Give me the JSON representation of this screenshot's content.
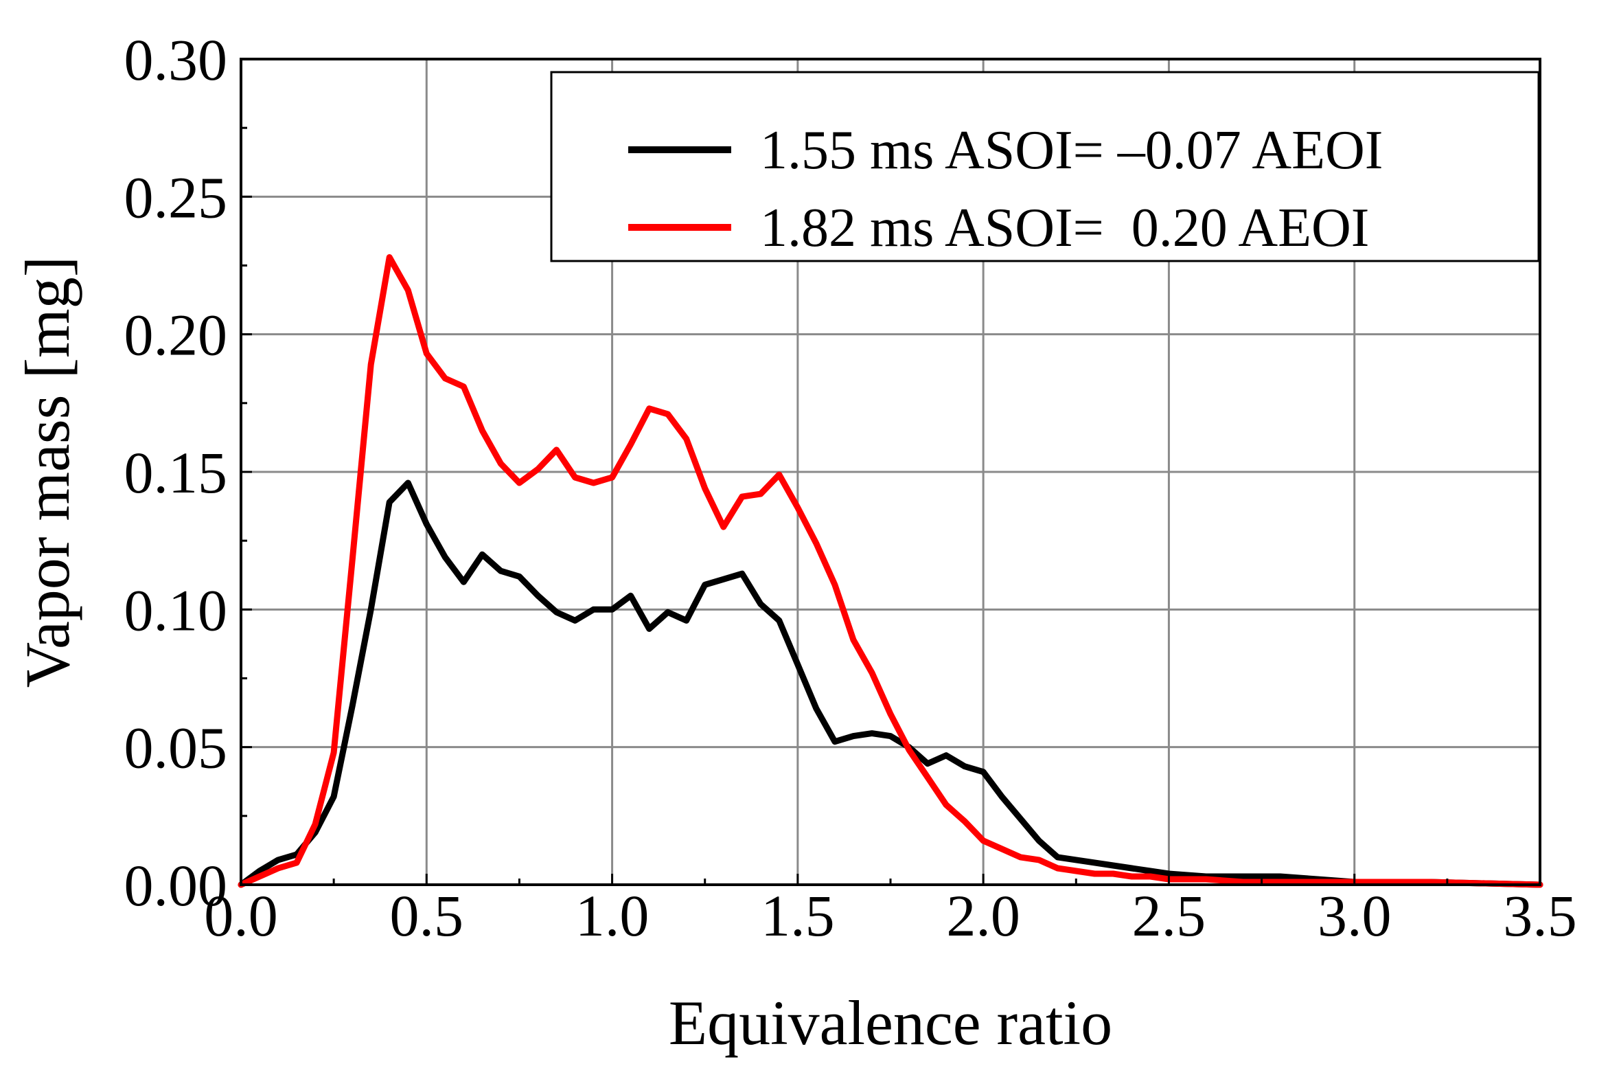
{
  "chart_data": {
    "type": "line",
    "title": "",
    "xlabel": "Equivalence ratio",
    "ylabel": "Vapor mass [mg]",
    "xlim": [
      0.0,
      3.5
    ],
    "ylim": [
      0.0,
      0.3
    ],
    "grid": true,
    "legend_position": "top-right",
    "x_ticks": [
      0.0,
      0.5,
      1.0,
      1.5,
      2.0,
      2.5,
      3.0,
      3.5
    ],
    "x_tick_labels": [
      "0.0",
      "0.5",
      "1.0",
      "1.5",
      "2.0",
      "2.5",
      "3.0",
      "3.5"
    ],
    "y_ticks": [
      0.0,
      0.05,
      0.1,
      0.15,
      0.2,
      0.25,
      0.3
    ],
    "y_tick_labels": [
      "0.00",
      "0.05",
      "0.10",
      "0.15",
      "0.20",
      "0.25",
      "0.30"
    ],
    "series": [
      {
        "name": "1.55 ms ASOI= –0.07 AEOI",
        "color": "#000000",
        "x": [
          0.0,
          0.05,
          0.1,
          0.15,
          0.2,
          0.25,
          0.3,
          0.35,
          0.4,
          0.45,
          0.5,
          0.55,
          0.6,
          0.65,
          0.7,
          0.75,
          0.8,
          0.85,
          0.9,
          0.95,
          1.0,
          1.05,
          1.1,
          1.15,
          1.2,
          1.25,
          1.3,
          1.35,
          1.4,
          1.45,
          1.5,
          1.55,
          1.6,
          1.65,
          1.7,
          1.75,
          1.8,
          1.85,
          1.9,
          1.95,
          2.0,
          2.05,
          2.1,
          2.15,
          2.2,
          2.25,
          2.3,
          2.35,
          2.4,
          2.45,
          2.5,
          2.6,
          2.7,
          2.8,
          2.9,
          3.0,
          3.2,
          3.5
        ],
        "values": [
          0.0,
          0.005,
          0.009,
          0.011,
          0.019,
          0.032,
          0.065,
          0.1,
          0.139,
          0.146,
          0.131,
          0.119,
          0.11,
          0.12,
          0.114,
          0.112,
          0.105,
          0.099,
          0.096,
          0.1,
          0.1,
          0.105,
          0.093,
          0.099,
          0.096,
          0.109,
          0.111,
          0.113,
          0.102,
          0.096,
          0.08,
          0.064,
          0.052,
          0.054,
          0.055,
          0.054,
          0.05,
          0.044,
          0.047,
          0.043,
          0.041,
          0.032,
          0.024,
          0.016,
          0.01,
          0.009,
          0.008,
          0.007,
          0.006,
          0.005,
          0.004,
          0.003,
          0.003,
          0.003,
          0.002,
          0.001,
          0.001,
          0.0
        ]
      },
      {
        "name": "1.82 ms ASOI=  0.20 AEOI",
        "color": "#ff0000",
        "x": [
          0.0,
          0.05,
          0.1,
          0.15,
          0.2,
          0.25,
          0.3,
          0.35,
          0.4,
          0.45,
          0.5,
          0.55,
          0.6,
          0.65,
          0.7,
          0.75,
          0.8,
          0.85,
          0.9,
          0.95,
          1.0,
          1.05,
          1.1,
          1.15,
          1.2,
          1.25,
          1.3,
          1.35,
          1.4,
          1.45,
          1.5,
          1.55,
          1.6,
          1.65,
          1.7,
          1.75,
          1.8,
          1.85,
          1.9,
          1.95,
          2.0,
          2.05,
          2.1,
          2.15,
          2.2,
          2.25,
          2.3,
          2.35,
          2.4,
          2.45,
          2.5,
          2.6,
          2.7,
          2.8,
          2.9,
          3.0,
          3.2,
          3.5
        ],
        "values": [
          0.0,
          0.003,
          0.006,
          0.008,
          0.022,
          0.048,
          0.118,
          0.189,
          0.228,
          0.216,
          0.193,
          0.184,
          0.181,
          0.165,
          0.153,
          0.146,
          0.151,
          0.158,
          0.148,
          0.146,
          0.148,
          0.16,
          0.173,
          0.171,
          0.162,
          0.144,
          0.13,
          0.141,
          0.142,
          0.149,
          0.137,
          0.124,
          0.109,
          0.089,
          0.077,
          0.062,
          0.049,
          0.039,
          0.029,
          0.023,
          0.016,
          0.013,
          0.01,
          0.009,
          0.006,
          0.005,
          0.004,
          0.004,
          0.003,
          0.003,
          0.002,
          0.002,
          0.001,
          0.001,
          0.001,
          0.001,
          0.001,
          0.0
        ]
      }
    ]
  }
}
